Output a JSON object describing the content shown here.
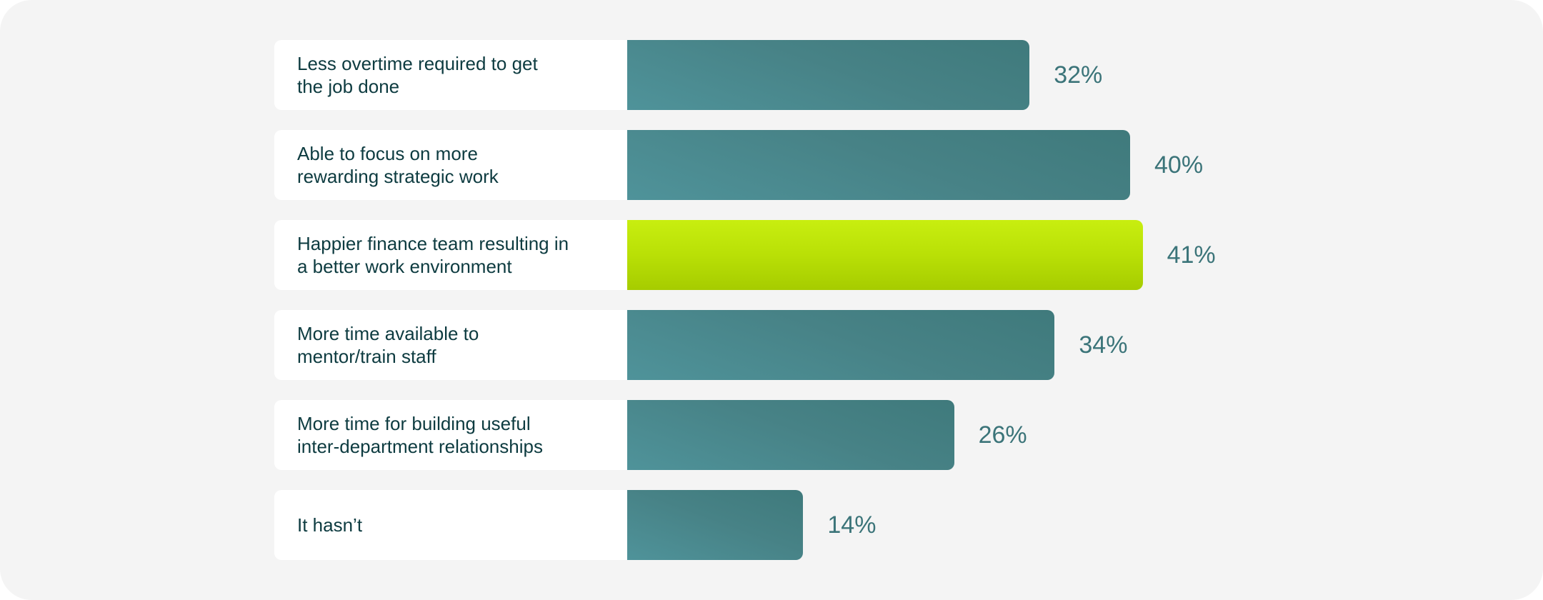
{
  "chart_data": {
    "type": "bar",
    "orientation": "horizontal",
    "categories": [
      "Less overtime required to get\nthe job done",
      "Able to focus on more\nrewarding strategic work",
      "Happier finance team resulting in\na better work environment",
      "More time available to\nmentor/train staff",
      "More time for building useful\ninter-department relationships",
      "It hasn’t"
    ],
    "values": [
      32,
      40,
      41,
      34,
      26,
      14
    ],
    "value_labels": [
      "32%",
      "40%",
      "41%",
      "34%",
      "26%",
      "14%"
    ],
    "highlight_index": 2,
    "xlim": [
      0,
      41
    ],
    "grid": false,
    "legend": "none"
  },
  "colors": {
    "background": "#f4f4f4",
    "bar": "#47868b",
    "highlight_bar": "#b9e006",
    "label_text": "#0d3b40",
    "value_text": "#3b7479"
  }
}
